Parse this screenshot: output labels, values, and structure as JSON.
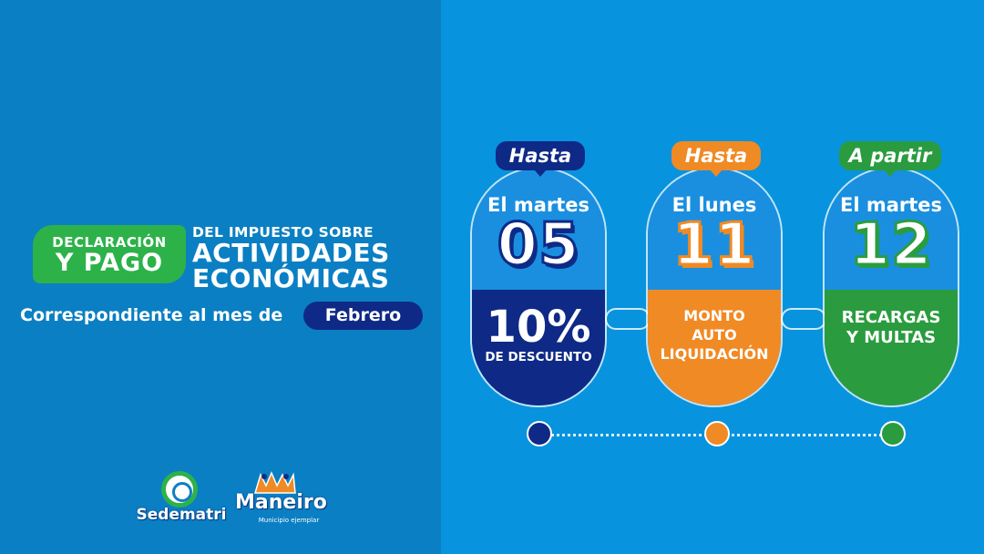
{
  "title": {
    "badge_line1": "DECLARACIÓN",
    "badge_line2": "Y PAGO",
    "line1": "DEL IMPUESTO SOBRE",
    "line2": "ACTIVIDADES",
    "line3": "ECONÓMICAS"
  },
  "subtitle": {
    "text": "Correspondiente al mes de",
    "month": "Febrero"
  },
  "logos": {
    "sedematri": "Sedematri",
    "maneiro": "Maneiro",
    "maneiro_sub": "Municipio ejemplar"
  },
  "cards": [
    {
      "tag": "Hasta",
      "day": "El martes",
      "number": "05",
      "main": "10%",
      "desc": "DE DESCUENTO",
      "color": "#0e2a86"
    },
    {
      "tag": "Hasta",
      "day": "El lunes",
      "number": "11",
      "lines": [
        "MONTO",
        "AUTO",
        "LIQUIDACIÓN"
      ],
      "color": "#f08a24"
    },
    {
      "tag": "A partir",
      "day": "El martes",
      "number": "12",
      "lines": [
        "RECARGAS",
        "Y MULTAS"
      ],
      "color": "#2a9c3f"
    }
  ],
  "colors": {
    "left_bg": "#0b7fc3",
    "right_bg": "#0893de",
    "green": "#2db24a"
  }
}
